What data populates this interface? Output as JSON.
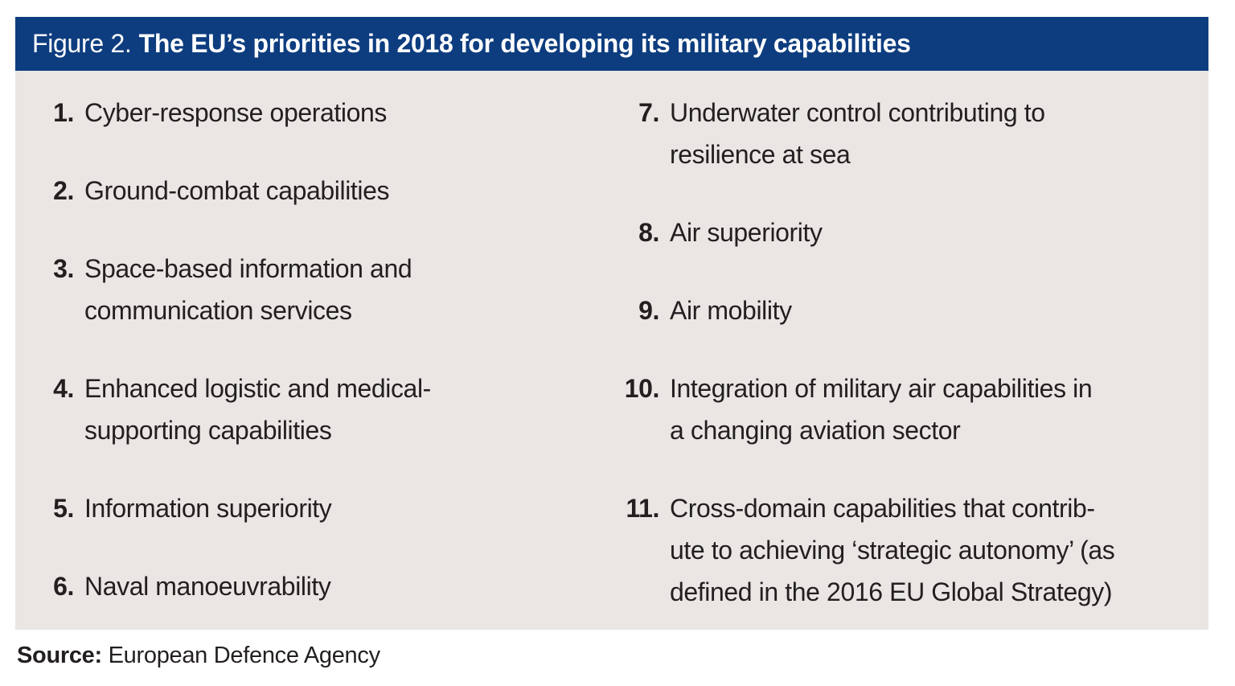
{
  "figure": {
    "label": "Figure 2.",
    "title": "The EU’s priorities in 2018 for developing its military capabilities"
  },
  "columns": {
    "left": [
      {
        "num": "1.",
        "text": "Cyber-response operations"
      },
      {
        "num": "2.",
        "text": "Ground-combat capabilities"
      },
      {
        "num": "3.",
        "text": "Space-based information and\ncommunication services"
      },
      {
        "num": "4.",
        "text": "Enhanced logistic and medical-\nsupporting capabilities"
      },
      {
        "num": "5.",
        "text": "Information superiority"
      },
      {
        "num": "6.",
        "text": "Naval manoeuvrability"
      }
    ],
    "right": [
      {
        "num": "7.",
        "text": "Underwater control contributing to\nresilience at sea"
      },
      {
        "num": "8.",
        "text": "Air superiority"
      },
      {
        "num": "9.",
        "text": "Air mobility"
      },
      {
        "num": "10.",
        "text": "Integration of military air capabilities in\na changing aviation sector"
      },
      {
        "num": "11.",
        "text": "Cross-domain capabilities that contrib-\nute to achieving ‘strategic autonomy’ (as\ndefined in the 2016 EU Global Strategy)"
      }
    ]
  },
  "source": {
    "label": "Source:",
    "text": "European Defence Agency"
  },
  "colors": {
    "header_bg": "#0d3d7f",
    "header_text": "#ffffff",
    "panel_bg": "#e9e6e3",
    "body_text": "#231f20",
    "page_bg": "#ffffff"
  }
}
